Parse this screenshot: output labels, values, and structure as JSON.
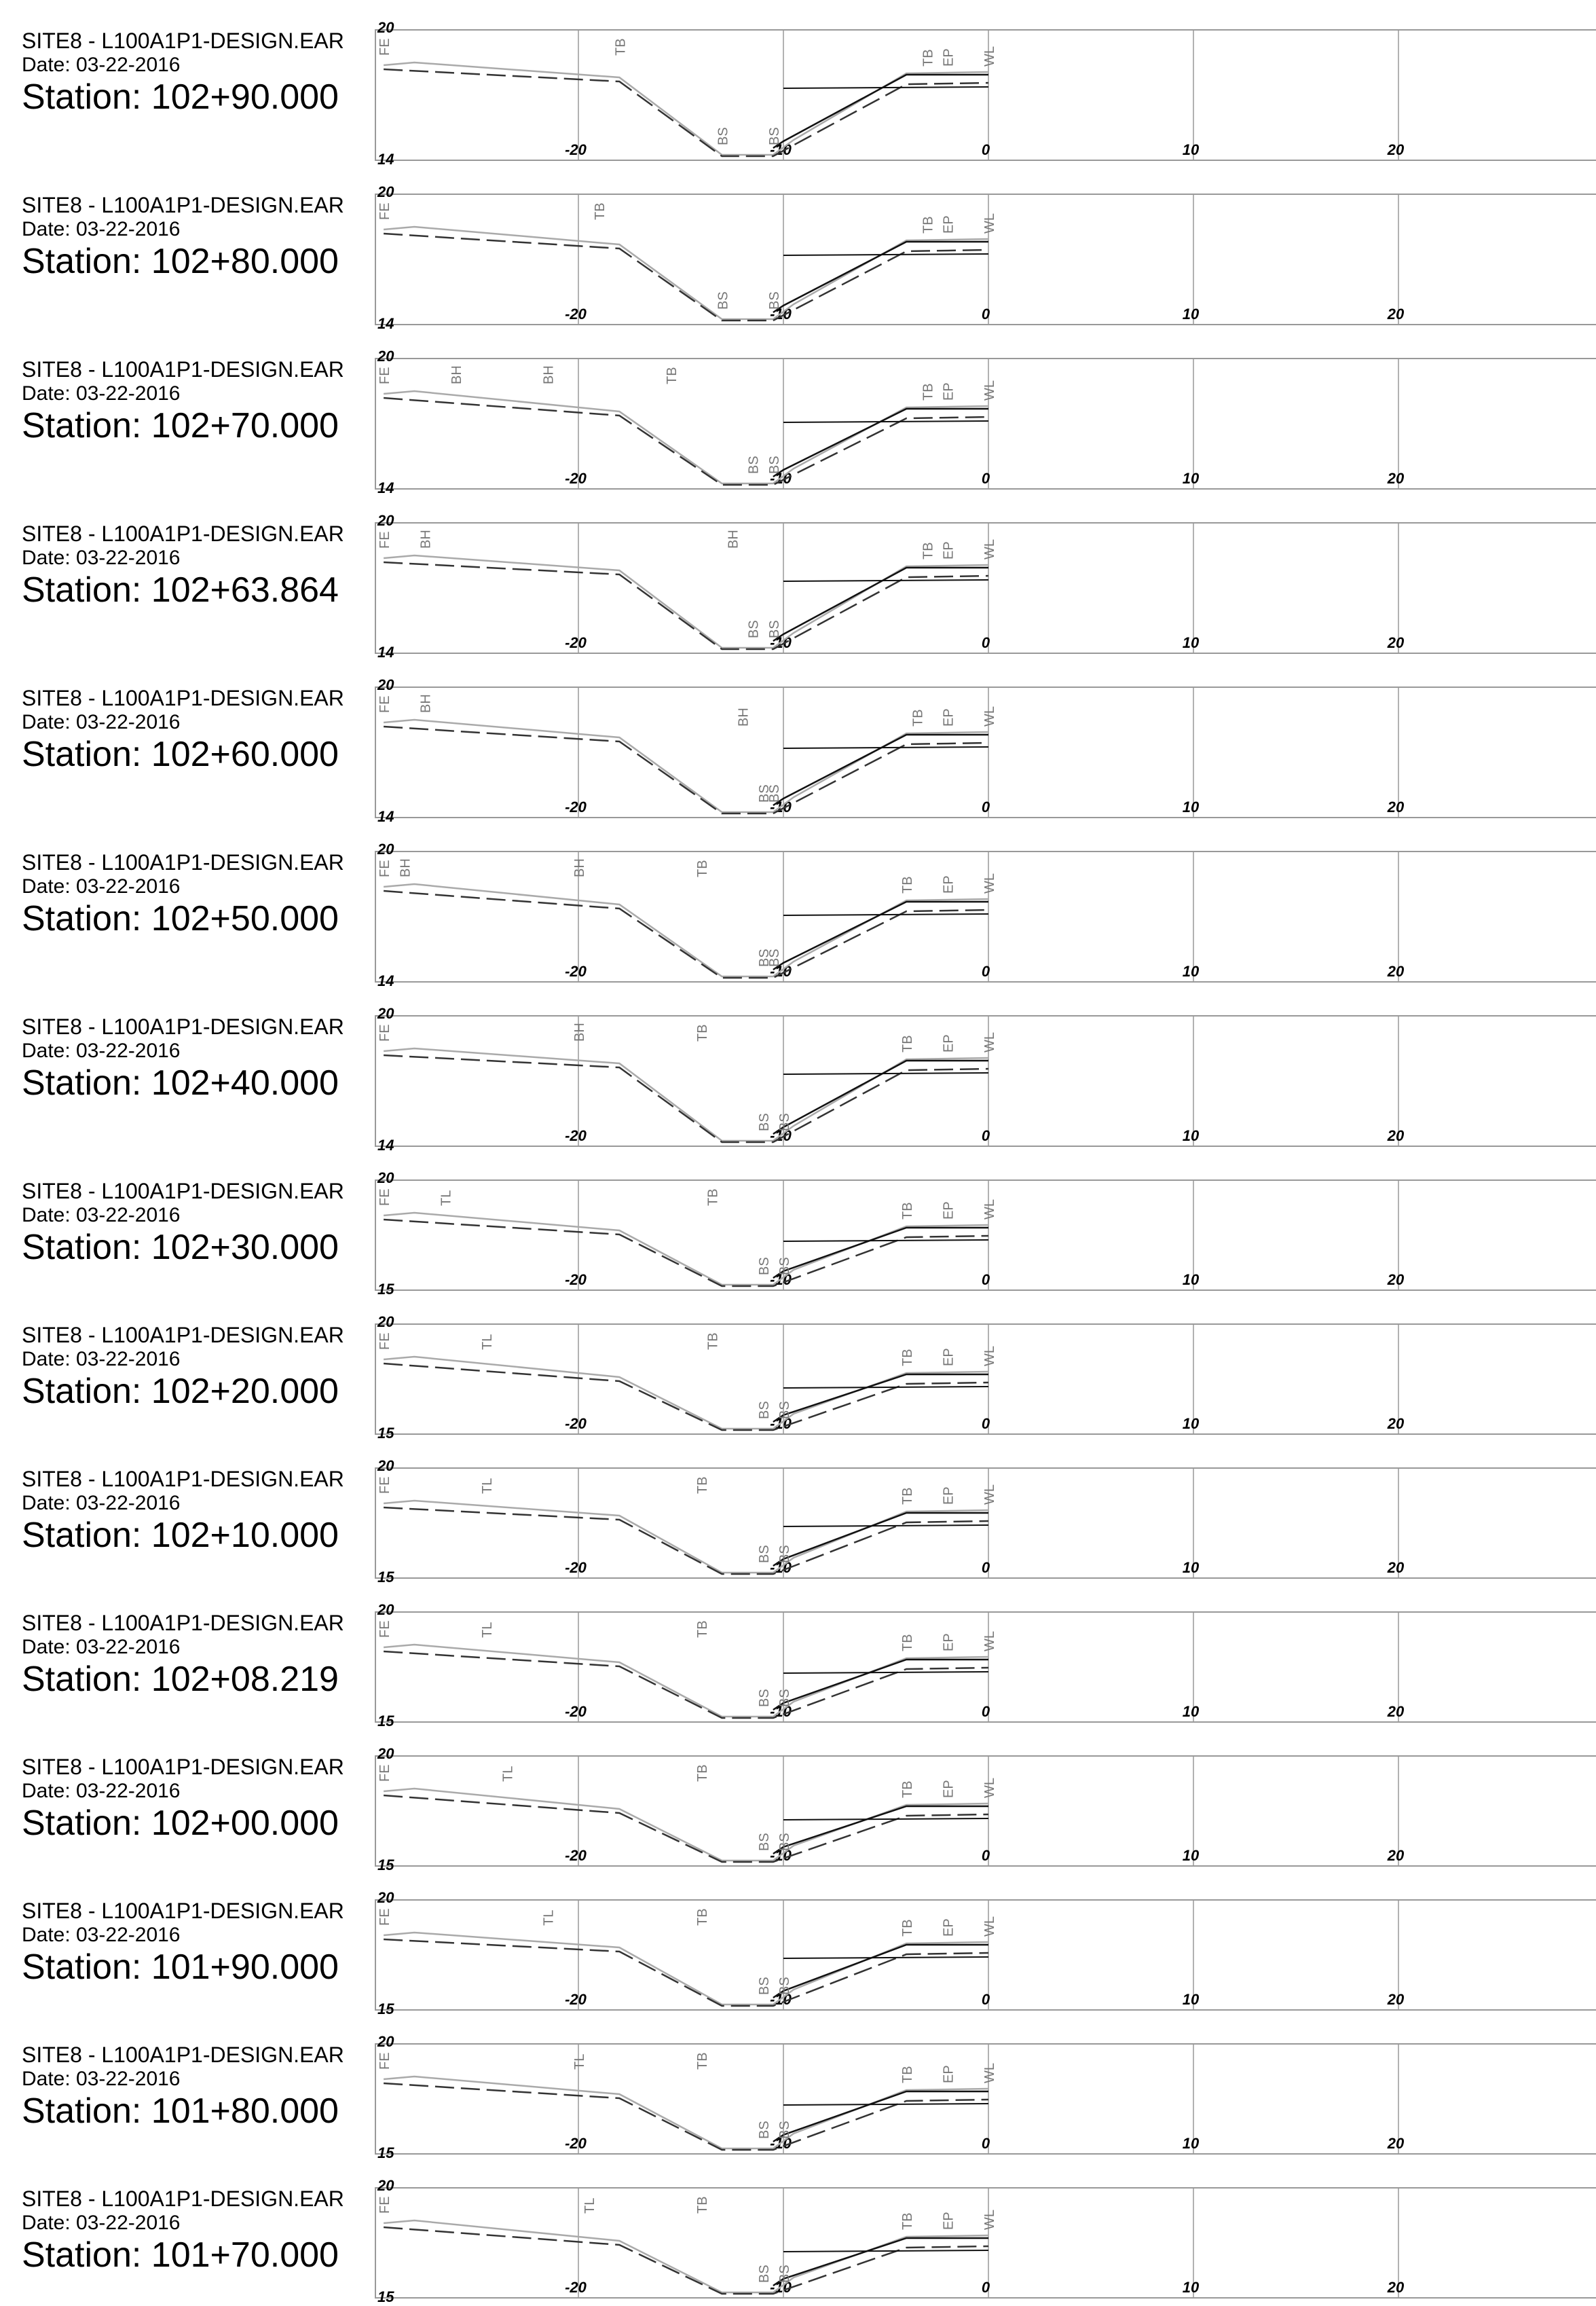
{
  "sheet": {
    "x_ticks": [
      -20,
      -10,
      0,
      10,
      20
    ],
    "colors": {
      "frame": "#999999",
      "existing": "#aaaaaa",
      "design": "#111111",
      "label": "#777777"
    }
  },
  "sections": [
    {
      "file": "SITE8 - L100A1P1-DESIGN.EAR",
      "date": "Date: 03-22-2016",
      "station": "Station: 102+90.000",
      "ymin": "14",
      "ymax": "20",
      "points": [
        {
          "label": "FE",
          "x": -29.5
        },
        {
          "label": "TB",
          "x": -18
        },
        {
          "label": "BS",
          "x": -13
        },
        {
          "label": "BS",
          "x": -10.5
        },
        {
          "label": "TB",
          "x": -3
        },
        {
          "label": "EP",
          "x": -2
        },
        {
          "label": "WL",
          "x": 0
        }
      ]
    },
    {
      "file": "SITE8 - L100A1P1-DESIGN.EAR",
      "date": "Date: 03-22-2016",
      "station": "Station: 102+80.000",
      "ymin": "14",
      "ymax": "20",
      "points": [
        {
          "label": "FE",
          "x": -29.5
        },
        {
          "label": "TB",
          "x": -19
        },
        {
          "label": "BS",
          "x": -13
        },
        {
          "label": "BS",
          "x": -10.5
        },
        {
          "label": "TB",
          "x": -3
        },
        {
          "label": "EP",
          "x": -2
        },
        {
          "label": "WL",
          "x": 0
        }
      ]
    },
    {
      "file": "SITE8 - L100A1P1-DESIGN.EAR",
      "date": "Date: 03-22-2016",
      "station": "Station: 102+70.000",
      "ymin": "14",
      "ymax": "20",
      "points": [
        {
          "label": "FE",
          "x": -29.5
        },
        {
          "label": "BH",
          "x": -26
        },
        {
          "label": "BH",
          "x": -21.5
        },
        {
          "label": "TB",
          "x": -15.5
        },
        {
          "label": "BS",
          "x": -11.5
        },
        {
          "label": "BS",
          "x": -10.5
        },
        {
          "label": "TB",
          "x": -3
        },
        {
          "label": "EP",
          "x": -2
        },
        {
          "label": "WL",
          "x": 0
        }
      ]
    },
    {
      "file": "SITE8 - L100A1P1-DESIGN.EAR",
      "date": "Date: 03-22-2016",
      "station": "Station: 102+63.864",
      "ymin": "14",
      "ymax": "20",
      "points": [
        {
          "label": "FE",
          "x": -29.5
        },
        {
          "label": "BH",
          "x": -27.5
        },
        {
          "label": "BH",
          "x": -12.5
        },
        {
          "label": "BS",
          "x": -11.5
        },
        {
          "label": "BS",
          "x": -10.5
        },
        {
          "label": "TB",
          "x": -3
        },
        {
          "label": "EP",
          "x": -2
        },
        {
          "label": "WL",
          "x": 0
        }
      ]
    },
    {
      "file": "SITE8 - L100A1P1-DESIGN.EAR",
      "date": "Date: 03-22-2016",
      "station": "Station: 102+60.000",
      "ymin": "14",
      "ymax": "20",
      "points": [
        {
          "label": "FE",
          "x": -29.5
        },
        {
          "label": "BH",
          "x": -27.5
        },
        {
          "label": "BH",
          "x": -12
        },
        {
          "label": "BS",
          "x": -11
        },
        {
          "label": "BS",
          "x": -10.5
        },
        {
          "label": "TB",
          "x": -3.5
        },
        {
          "label": "EP",
          "x": -2
        },
        {
          "label": "WL",
          "x": 0
        }
      ]
    },
    {
      "file": "SITE8 - L100A1P1-DESIGN.EAR",
      "date": "Date: 03-22-2016",
      "station": "Station: 102+50.000",
      "ymin": "14",
      "ymax": "20",
      "points": [
        {
          "label": "FE",
          "x": -29.5
        },
        {
          "label": "BH",
          "x": -28.5
        },
        {
          "label": "BH",
          "x": -20
        },
        {
          "label": "TB",
          "x": -14
        },
        {
          "label": "BS",
          "x": -11
        },
        {
          "label": "BS",
          "x": -10.5
        },
        {
          "label": "TB",
          "x": -4
        },
        {
          "label": "EP",
          "x": -2
        },
        {
          "label": "WL",
          "x": 0
        }
      ]
    },
    {
      "file": "SITE8 - L100A1P1-DESIGN.EAR",
      "date": "Date: 03-22-2016",
      "station": "Station: 102+40.000",
      "ymin": "14",
      "ymax": "20",
      "points": [
        {
          "label": "FE",
          "x": -29.5
        },
        {
          "label": "BH",
          "x": -20
        },
        {
          "label": "TB",
          "x": -14
        },
        {
          "label": "BS",
          "x": -11
        },
        {
          "label": "BS",
          "x": -10
        },
        {
          "label": "TB",
          "x": -4
        },
        {
          "label": "EP",
          "x": -2
        },
        {
          "label": "WL",
          "x": 0
        }
      ]
    },
    {
      "file": "SITE8 - L100A1P1-DESIGN.EAR",
      "date": "Date: 03-22-2016",
      "station": "Station: 102+30.000",
      "ymin": "15",
      "ymax": "20",
      "points": [
        {
          "label": "FE",
          "x": -29.5
        },
        {
          "label": "TL",
          "x": -26.5
        },
        {
          "label": "TB",
          "x": -13.5
        },
        {
          "label": "BS",
          "x": -11
        },
        {
          "label": "BS",
          "x": -10
        },
        {
          "label": "TB",
          "x": -4
        },
        {
          "label": "EP",
          "x": -2
        },
        {
          "label": "WL",
          "x": 0
        }
      ]
    },
    {
      "file": "SITE8 - L100A1P1-DESIGN.EAR",
      "date": "Date: 03-22-2016",
      "station": "Station: 102+20.000",
      "ymin": "15",
      "ymax": "20",
      "points": [
        {
          "label": "FE",
          "x": -29.5
        },
        {
          "label": "TL",
          "x": -24.5
        },
        {
          "label": "TB",
          "x": -13.5
        },
        {
          "label": "BS",
          "x": -11
        },
        {
          "label": "BS",
          "x": -10
        },
        {
          "label": "TB",
          "x": -4
        },
        {
          "label": "EP",
          "x": -2
        },
        {
          "label": "WL",
          "x": 0
        }
      ]
    },
    {
      "file": "SITE8 - L100A1P1-DESIGN.EAR",
      "date": "Date: 03-22-2016",
      "station": "Station: 102+10.000",
      "ymin": "15",
      "ymax": "20",
      "points": [
        {
          "label": "FE",
          "x": -29.5
        },
        {
          "label": "TL",
          "x": -24.5
        },
        {
          "label": "TB",
          "x": -14
        },
        {
          "label": "BS",
          "x": -11
        },
        {
          "label": "BS",
          "x": -10
        },
        {
          "label": "TB",
          "x": -4
        },
        {
          "label": "EP",
          "x": -2
        },
        {
          "label": "WL",
          "x": 0
        }
      ]
    },
    {
      "file": "SITE8 - L100A1P1-DESIGN.EAR",
      "date": "Date: 03-22-2016",
      "station": "Station: 102+08.219",
      "ymin": "15",
      "ymax": "20",
      "points": [
        {
          "label": "FE",
          "x": -29.5
        },
        {
          "label": "TL",
          "x": -24.5
        },
        {
          "label": "TB",
          "x": -14
        },
        {
          "label": "BS",
          "x": -11
        },
        {
          "label": "BS",
          "x": -10
        },
        {
          "label": "TB",
          "x": -4
        },
        {
          "label": "EP",
          "x": -2
        },
        {
          "label": "WL",
          "x": 0
        }
      ]
    },
    {
      "file": "SITE8 - L100A1P1-DESIGN.EAR",
      "date": "Date: 03-22-2016",
      "station": "Station: 102+00.000",
      "ymin": "15",
      "ymax": "20",
      "points": [
        {
          "label": "FE",
          "x": -29.5
        },
        {
          "label": "TL",
          "x": -23.5
        },
        {
          "label": "TB",
          "x": -14
        },
        {
          "label": "BS",
          "x": -11
        },
        {
          "label": "BS",
          "x": -10
        },
        {
          "label": "TB",
          "x": -4
        },
        {
          "label": "EP",
          "x": -2
        },
        {
          "label": "WL",
          "x": 0
        }
      ]
    },
    {
      "file": "SITE8 - L100A1P1-DESIGN.EAR",
      "date": "Date: 03-22-2016",
      "station": "Station: 101+90.000",
      "ymin": "15",
      "ymax": "20",
      "points": [
        {
          "label": "FE",
          "x": -29.5
        },
        {
          "label": "TL",
          "x": -21.5
        },
        {
          "label": "TB",
          "x": -14
        },
        {
          "label": "BS",
          "x": -11
        },
        {
          "label": "BS",
          "x": -10
        },
        {
          "label": "TB",
          "x": -4
        },
        {
          "label": "EP",
          "x": -2
        },
        {
          "label": "WL",
          "x": 0
        }
      ]
    },
    {
      "file": "SITE8 - L100A1P1-DESIGN.EAR",
      "date": "Date: 03-22-2016",
      "station": "Station: 101+80.000",
      "ymin": "15",
      "ymax": "20",
      "points": [
        {
          "label": "FE",
          "x": -29.5
        },
        {
          "label": "TL",
          "x": -20
        },
        {
          "label": "TB",
          "x": -14
        },
        {
          "label": "BS",
          "x": -11
        },
        {
          "label": "BS",
          "x": -10
        },
        {
          "label": "TB",
          "x": -4
        },
        {
          "label": "EP",
          "x": -2
        },
        {
          "label": "WL",
          "x": 0
        }
      ]
    },
    {
      "file": "SITE8 - L100A1P1-DESIGN.EAR",
      "date": "Date: 03-22-2016",
      "station": "Station: 101+70.000",
      "ymin": "15",
      "ymax": "20",
      "points": [
        {
          "label": "FE",
          "x": -29.5
        },
        {
          "label": "TL",
          "x": -19.5
        },
        {
          "label": "TB",
          "x": -14
        },
        {
          "label": "BS",
          "x": -11
        },
        {
          "label": "BS",
          "x": -10
        },
        {
          "label": "TB",
          "x": -4
        },
        {
          "label": "EP",
          "x": -2
        },
        {
          "label": "WL",
          "x": 0
        }
      ]
    }
  ]
}
